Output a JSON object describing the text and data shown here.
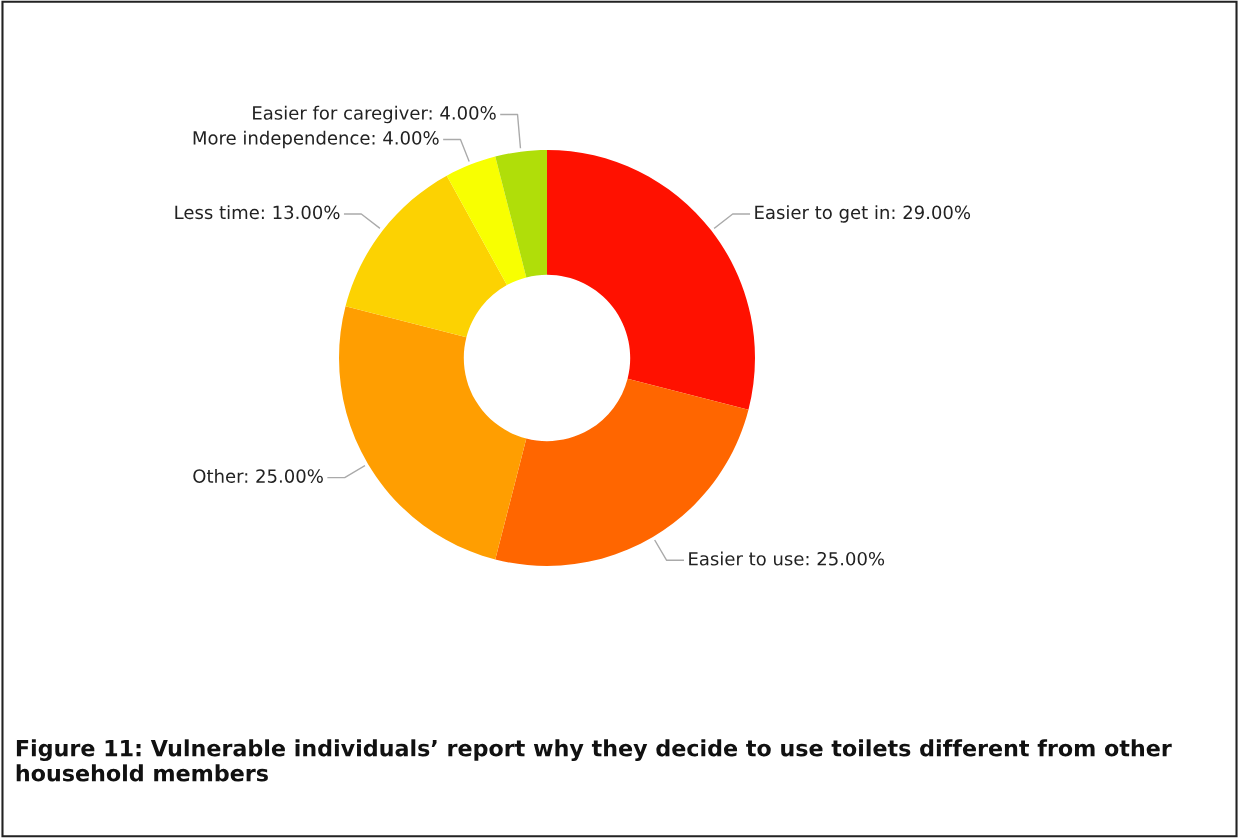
{
  "chart_data": {
    "type": "donut",
    "title": "Figure 11: Vulnerable individuals’ report why they decide to use toilets different from other household members",
    "categories": [
      "Easier to get in",
      "Easier to use",
      "Other",
      "Less time",
      "More independence",
      "Easier for caregiver"
    ],
    "values": [
      29,
      25,
      25,
      13,
      4,
      4
    ],
    "value_labels": [
      "29.00%",
      "25.00%",
      "25.00%",
      "13.00%",
      "4.00%",
      "4.00%"
    ],
    "colors": [
      "#ff1100",
      "#ff6600",
      "#ff9e01",
      "#fcd202",
      "#f8ff01",
      "#b0de09"
    ],
    "legend": false
  }
}
